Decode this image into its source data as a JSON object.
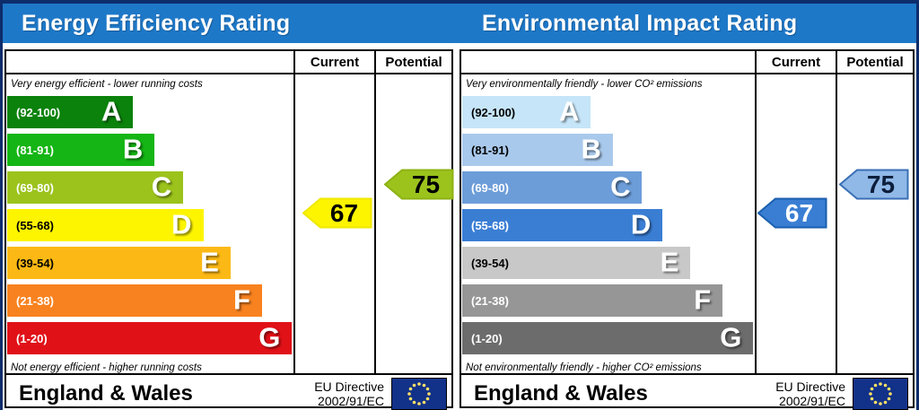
{
  "columns": {
    "current": "Current",
    "potential": "Potential"
  },
  "colors": {
    "header_bg": "#1e78c8",
    "frame": "#0d2d6b",
    "flag_bg": "#123189",
    "flag_stars": "#ffe066"
  },
  "panels": [
    {
      "title": "Energy Efficiency Rating",
      "top_caption": "Very energy efficient - lower running costs",
      "bottom_caption": "Not energy efficient - higher running costs",
      "bands": [
        {
          "letter": "A",
          "range": "(92-100)",
          "color": "#0b820b",
          "range_color": "#ffffff",
          "width_pct": 44
        },
        {
          "letter": "B",
          "range": "(81-91)",
          "color": "#14b514",
          "range_color": "#ffffff",
          "width_pct": 51.5
        },
        {
          "letter": "C",
          "range": "(69-80)",
          "color": "#9bc31c",
          "range_color": "#ffffff",
          "width_pct": 61.5
        },
        {
          "letter": "D",
          "range": "(55-68)",
          "color": "#fdf500",
          "range_color": "#000000",
          "width_pct": 68.5
        },
        {
          "letter": "E",
          "range": "(39-54)",
          "color": "#fcb915",
          "range_color": "#000000",
          "width_pct": 78
        },
        {
          "letter": "F",
          "range": "(21-38)",
          "color": "#f8821f",
          "range_color": "#ffffff",
          "width_pct": 89
        },
        {
          "letter": "G",
          "range": "(1-20)",
          "color": "#e01117",
          "range_color": "#ffffff",
          "width_pct": 99.5
        }
      ],
      "current": {
        "value": "67",
        "fill": "#fdf500",
        "border": "#f0e800",
        "text_color": "#000000"
      },
      "potential": {
        "value": "75",
        "fill": "#9bc31c",
        "border": "#8db214",
        "text_color": "#000000"
      },
      "footer": {
        "region": "England & Wales",
        "directive_line1": "EU Directive",
        "directive_line2": "2002/91/EC"
      }
    },
    {
      "title": "Environmental Impact Rating",
      "top_caption": "Very environmentally friendly - lower CO² emissions",
      "bottom_caption": "Not environmentally friendly - higher CO² emissions",
      "bands": [
        {
          "letter": "A",
          "range": "(92-100)",
          "color": "#c6e5f8",
          "range_color": "#000000",
          "width_pct": 44
        },
        {
          "letter": "B",
          "range": "(81-91)",
          "color": "#a9c9ec",
          "range_color": "#000000",
          "width_pct": 51.5
        },
        {
          "letter": "C",
          "range": "(69-80)",
          "color": "#6d9dd9",
          "range_color": "#ffffff",
          "width_pct": 61.5
        },
        {
          "letter": "D",
          "range": "(55-68)",
          "color": "#3a7ed4",
          "range_color": "#ffffff",
          "width_pct": 68.5
        },
        {
          "letter": "E",
          "range": "(39-54)",
          "color": "#c8c8c8",
          "range_color": "#000000",
          "width_pct": 78
        },
        {
          "letter": "F",
          "range": "(21-38)",
          "color": "#969696",
          "range_color": "#ffffff",
          "width_pct": 89
        },
        {
          "letter": "G",
          "range": "(1-20)",
          "color": "#6c6c6c",
          "range_color": "#ffffff",
          "width_pct": 99.5
        }
      ],
      "current": {
        "value": "67",
        "fill": "#3a7ed4",
        "border": "#1b5fae",
        "text_color": "#ffffff"
      },
      "potential": {
        "value": "75",
        "fill": "#90b9e8",
        "border": "#3a6fb5",
        "text_color": "#0d1f3c"
      },
      "footer": {
        "region": "England & Wales",
        "directive_line1": "EU Directive",
        "directive_line2": "2002/91/EC"
      }
    }
  ],
  "chart_data": [
    {
      "type": "bar",
      "title": "Energy Efficiency Rating",
      "categories": [
        "A",
        "B",
        "C",
        "D",
        "E",
        "F",
        "G"
      ],
      "band_ranges": [
        "92-100",
        "81-91",
        "69-80",
        "55-68",
        "39-54",
        "21-38",
        "1-20"
      ],
      "values": {
        "current": 67,
        "potential": 75
      },
      "current_band": "D",
      "potential_band": "C",
      "xlabel": "",
      "ylabel": "",
      "annotations": [
        "Very energy efficient - lower running costs",
        "Not energy efficient - higher running costs"
      ]
    },
    {
      "type": "bar",
      "title": "Environmental Impact Rating",
      "categories": [
        "A",
        "B",
        "C",
        "D",
        "E",
        "F",
        "G"
      ],
      "band_ranges": [
        "92-100",
        "81-91",
        "69-80",
        "55-68",
        "39-54",
        "21-38",
        "1-20"
      ],
      "values": {
        "current": 67,
        "potential": 75
      },
      "current_band": "D",
      "potential_band": "C",
      "xlabel": "",
      "ylabel": "",
      "annotations": [
        "Very environmentally friendly - lower CO² emissions",
        "Not environmentally friendly - higher CO² emissions"
      ]
    }
  ]
}
